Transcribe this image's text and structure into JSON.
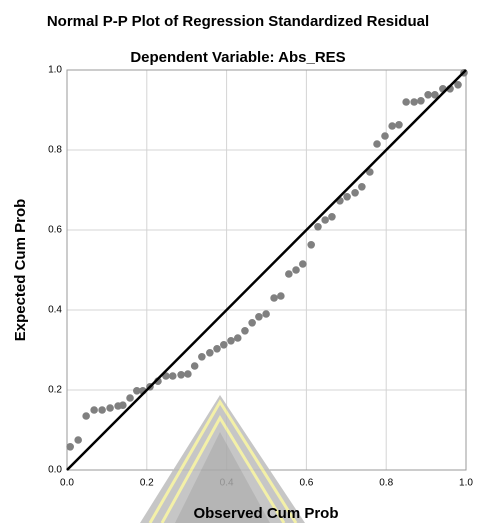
{
  "chart_data": {
    "type": "scatter",
    "title": "Normal P-P Plot of Regression Standardized Residual",
    "subtitle": "Dependent Variable: Abs_RES",
    "x_label": "Observed Cum Prob",
    "y_label": "Expected Cum Prob",
    "xlim": [
      0,
      1
    ],
    "ylim": [
      0,
      1
    ],
    "xticks": [
      {
        "value": 0,
        "label": "0.0"
      },
      0.2,
      0.4,
      0.6,
      0.8,
      {
        "value": 1,
        "label": "1.0"
      }
    ],
    "yticks": [
      {
        "value": 0,
        "label": "0.0"
      },
      0.2,
      0.4,
      0.6,
      0.8,
      {
        "value": 1,
        "label": "1.0"
      }
    ],
    "grid": true,
    "reference_line": true,
    "series": [
      {
        "color": "#808080",
        "x": [
          0.008,
          0.028,
          0.048,
          0.068,
          0.088,
          0.108,
          0.128,
          0.14,
          0.158,
          0.175,
          0.19,
          0.208,
          0.228,
          0.248,
          0.265,
          0.286,
          0.303,
          0.32,
          0.338,
          0.358,
          0.376,
          0.393,
          0.411,
          0.428,
          0.446,
          0.464,
          0.481,
          0.499,
          0.519,
          0.536,
          0.556,
          0.574,
          0.591,
          0.612,
          0.629,
          0.647,
          0.664,
          0.684,
          0.702,
          0.722,
          0.739,
          0.759,
          0.777,
          0.797,
          0.815,
          0.832,
          0.85,
          0.87,
          0.887,
          0.905,
          0.922,
          0.942,
          0.96,
          0.98,
          0.995
        ],
        "values": [
          0.058,
          0.075,
          0.135,
          0.15,
          0.15,
          0.155,
          0.16,
          0.162,
          0.18,
          0.198,
          0.198,
          0.208,
          0.222,
          0.235,
          0.235,
          0.238,
          0.24,
          0.26,
          0.283,
          0.293,
          0.303,
          0.313,
          0.323,
          0.33,
          0.348,
          0.368,
          0.383,
          0.39,
          0.43,
          0.435,
          0.49,
          0.5,
          0.515,
          0.563,
          0.608,
          0.625,
          0.633,
          0.673,
          0.683,
          0.693,
          0.708,
          0.745,
          0.815,
          0.835,
          0.86,
          0.863,
          0.92,
          0.92,
          0.923,
          0.938,
          0.938,
          0.953,
          0.953,
          0.963,
          0.993
        ]
      }
    ]
  }
}
